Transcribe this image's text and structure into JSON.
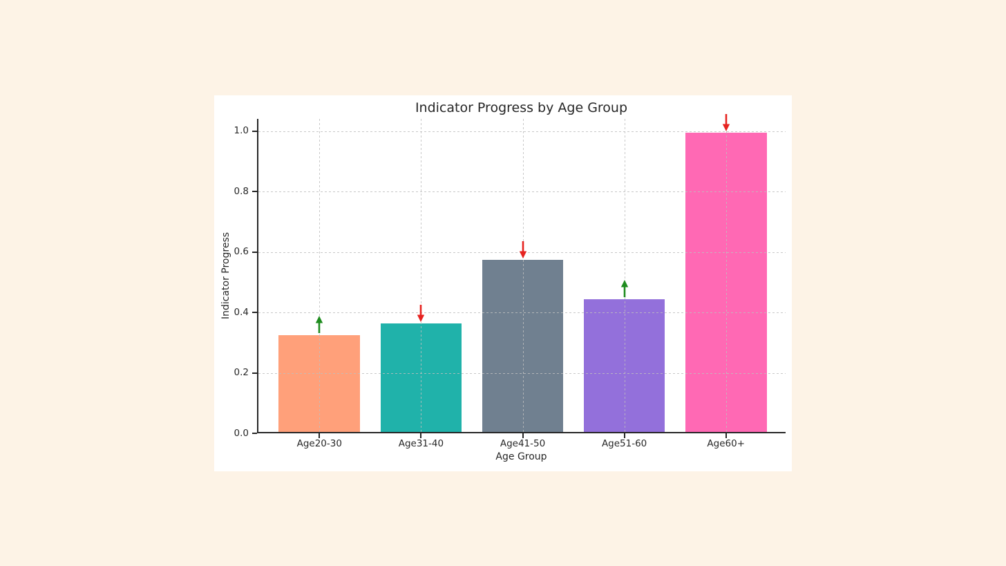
{
  "page": {
    "background_color": "#fdf3e6",
    "figure_background_color": "#ffffff",
    "text_color": "#262626"
  },
  "chart_data": {
    "type": "bar",
    "title": "Indicator Progress by Age Group",
    "xlabel": "Age Group",
    "ylabel": "Indicator Progress",
    "categories": [
      "Age20-30",
      "Age31-40",
      "Age41-50",
      "Age51-60",
      "Age60+"
    ],
    "values": [
      0.32,
      0.36,
      0.57,
      0.44,
      0.99
    ],
    "bar_colors": [
      "#ffa07a",
      "#20b2aa",
      "#708090",
      "#9370db",
      "#ff69b4"
    ],
    "trend_arrows": [
      {
        "category": "Age20-30",
        "direction": "up",
        "color": "#1e8c1e"
      },
      {
        "category": "Age31-40",
        "direction": "down",
        "color": "#e62320"
      },
      {
        "category": "Age41-50",
        "direction": "down",
        "color": "#e62320"
      },
      {
        "category": "Age51-60",
        "direction": "up",
        "color": "#1e8c1e"
      },
      {
        "category": "Age60+",
        "direction": "down",
        "color": "#e62320"
      }
    ],
    "ytick_labels": [
      "0.0",
      "0.2",
      "0.4",
      "0.6",
      "0.8",
      "1.0"
    ],
    "yticks": [
      0.0,
      0.2,
      0.4,
      0.6,
      0.8,
      1.0
    ],
    "ylim": [
      0,
      1.04
    ],
    "xlim_band_units": 5.2,
    "bar_width_fraction": 0.8,
    "grid": true,
    "grid_style": "dashed",
    "legend": null
  }
}
